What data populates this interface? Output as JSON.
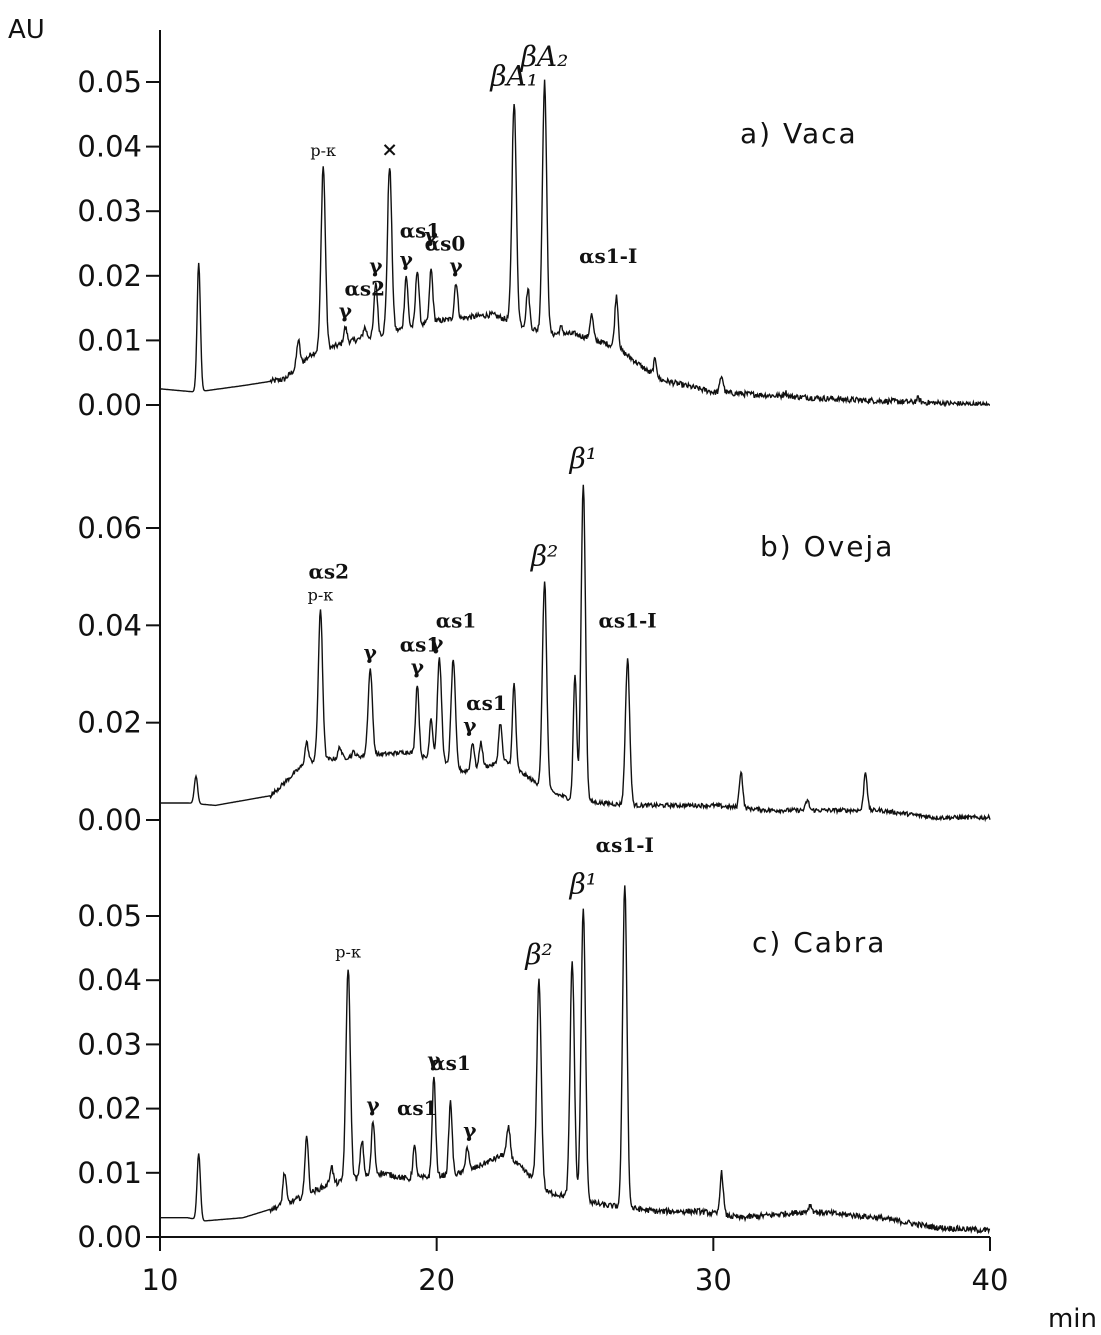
{
  "chart_data": {
    "type": "line",
    "xlabel": "min",
    "ylabel": "AU",
    "xlim": [
      10,
      40
    ],
    "x_ticks": [
      "10",
      "20",
      "30",
      "40"
    ],
    "grid": false,
    "panels": [
      {
        "label": "a)  Vaca",
        "ylim": [
          0,
          0.055
        ],
        "y_ticks": [
          "0.00",
          "0.01",
          "0.02",
          "0.03",
          "0.04",
          "0.05"
        ],
        "baseline": [
          [
            10,
            0.0025
          ],
          [
            11.3,
            0.002
          ],
          [
            13,
            0.003
          ],
          [
            14.5,
            0.004
          ],
          [
            15.5,
            0.008
          ],
          [
            17,
            0.01
          ],
          [
            20,
            0.013
          ],
          [
            22,
            0.014
          ],
          [
            24,
            0.011
          ],
          [
            25,
            0.011
          ],
          [
            26.5,
            0.009
          ],
          [
            28,
            0.004
          ],
          [
            30,
            0.002
          ],
          [
            32,
            0.0015
          ],
          [
            35,
            0.0008
          ],
          [
            40,
            0
          ]
        ],
        "peaks": [
          {
            "x": 11.4,
            "y": 0.022
          },
          {
            "x": 15.0,
            "y": 0.01
          },
          {
            "x": 15.9,
            "y": 0.037
          },
          {
            "x": 16.7,
            "y": 0.012
          },
          {
            "x": 17.4,
            "y": 0.012
          },
          {
            "x": 17.8,
            "y": 0.019
          },
          {
            "x": 18.3,
            "y": 0.037
          },
          {
            "x": 18.9,
            "y": 0.02
          },
          {
            "x": 19.3,
            "y": 0.021
          },
          {
            "x": 19.8,
            "y": 0.021
          },
          {
            "x": 20.7,
            "y": 0.019
          },
          {
            "x": 21.7,
            "y": 0.009
          },
          {
            "x": 22.8,
            "y": 0.047
          },
          {
            "x": 23.3,
            "y": 0.018
          },
          {
            "x": 23.9,
            "y": 0.05
          },
          {
            "x": 24.5,
            "y": 0.012
          },
          {
            "x": 25.0,
            "y": 0.01
          },
          {
            "x": 25.6,
            "y": 0.014
          },
          {
            "x": 26.5,
            "y": 0.017
          },
          {
            "x": 27.9,
            "y": 0.007
          },
          {
            "x": 30.3,
            "y": 0.0045
          },
          {
            "x": 32.6,
            "y": 0.002
          },
          {
            "x": 37.4,
            "y": 0.001
          }
        ],
        "annotations": [
          {
            "text": "p-κ",
            "x": 15.9
          },
          {
            "text": "×",
            "x": 18.3
          },
          {
            "text": "βA₁",
            "x": 22.8
          },
          {
            "text": "βA₂",
            "x": 23.9
          },
          {
            "text": "αs1",
            "x": 19.4
          },
          {
            "text": "αs0",
            "x": 20.3
          },
          {
            "text": "αs2",
            "x": 17.4
          },
          {
            "text": "γ",
            "x": 16.7
          },
          {
            "text": "γ",
            "x": 17.8
          },
          {
            "text": "γ",
            "x": 18.9
          },
          {
            "text": "γ",
            "x": 19.8
          },
          {
            "text": "γ",
            "x": 20.7
          },
          {
            "text": "αs1-I",
            "x": 26.2
          }
        ]
      },
      {
        "label": "b)  Oveja",
        "ylim": [
          0,
          0.077
        ],
        "y_ticks": [
          "0.00",
          "0.02",
          "0.04",
          "0.06"
        ],
        "baseline": [
          [
            10,
            0.0035
          ],
          [
            11,
            0.0035
          ],
          [
            12,
            0.003
          ],
          [
            14,
            0.005
          ],
          [
            15.3,
            0.012
          ],
          [
            17,
            0.013
          ],
          [
            19,
            0.014
          ],
          [
            21,
            0.01
          ],
          [
            22.5,
            0.012
          ],
          [
            24,
            0.006
          ],
          [
            25,
            0.004
          ],
          [
            27,
            0.003
          ],
          [
            28,
            0.003
          ],
          [
            30,
            0.003
          ],
          [
            32,
            0.002
          ],
          [
            34,
            0.002
          ],
          [
            36,
            0.002
          ],
          [
            38,
            0.0005
          ],
          [
            40,
            0.0005
          ]
        ],
        "peaks": [
          {
            "x": 11.3,
            "y": 0.009
          },
          {
            "x": 15.3,
            "y": 0.016
          },
          {
            "x": 15.8,
            "y": 0.043
          },
          {
            "x": 16.5,
            "y": 0.015
          },
          {
            "x": 17.0,
            "y": 0.014
          },
          {
            "x": 17.6,
            "y": 0.031
          },
          {
            "x": 18.0,
            "y": 0.013
          },
          {
            "x": 19.3,
            "y": 0.028
          },
          {
            "x": 19.8,
            "y": 0.021
          },
          {
            "x": 20.1,
            "y": 0.033
          },
          {
            "x": 20.6,
            "y": 0.033
          },
          {
            "x": 21.3,
            "y": 0.016
          },
          {
            "x": 21.6,
            "y": 0.016
          },
          {
            "x": 22.3,
            "y": 0.02
          },
          {
            "x": 22.8,
            "y": 0.028
          },
          {
            "x": 23.9,
            "y": 0.049
          },
          {
            "x": 25.0,
            "y": 0.03
          },
          {
            "x": 25.3,
            "y": 0.069
          },
          {
            "x": 26.9,
            "y": 0.033
          },
          {
            "x": 31.0,
            "y": 0.01
          },
          {
            "x": 33.4,
            "y": 0.004
          },
          {
            "x": 35.5,
            "y": 0.01
          }
        ],
        "annotations": [
          {
            "text": "p-κ",
            "x": 15.8
          },
          {
            "text": "β²",
            "x": 23.9
          },
          {
            "text": "β¹",
            "x": 25.3
          },
          {
            "text": "αs1-I",
            "x": 26.9
          },
          {
            "text": "αs2",
            "x": 16.1
          },
          {
            "text": "γ",
            "x": 17.6
          },
          {
            "text": "αs1",
            "x": 19.4
          },
          {
            "text": "γ",
            "x": 19.3
          },
          {
            "text": "γ",
            "x": 20.0
          },
          {
            "text": "αs1",
            "x": 20.7
          },
          {
            "text": "αs1",
            "x": 21.8
          },
          {
            "text": "γ",
            "x": 21.2
          }
        ]
      },
      {
        "label": "c)  Cabra",
        "ylim": [
          0,
          0.058
        ],
        "y_ticks": [
          "0.00",
          "0.01",
          "0.02",
          "0.03",
          "0.04",
          "0.05"
        ],
        "baseline": [
          [
            10,
            0.003
          ],
          [
            11,
            0.003
          ],
          [
            11.6,
            0.0025
          ],
          [
            13,
            0.003
          ],
          [
            14.5,
            0.005
          ],
          [
            16,
            0.008
          ],
          [
            18,
            0.01
          ],
          [
            19,
            0.009
          ],
          [
            21,
            0.01
          ],
          [
            22.5,
            0.013
          ],
          [
            24,
            0.007
          ],
          [
            26,
            0.005
          ],
          [
            28,
            0.004
          ],
          [
            29.5,
            0.004
          ],
          [
            31,
            0.003
          ],
          [
            33.5,
            0.004
          ],
          [
            36,
            0.003
          ],
          [
            38,
            0.0015
          ],
          [
            40,
            0.001
          ]
        ],
        "peaks": [
          {
            "x": 11.4,
            "y": 0.013
          },
          {
            "x": 14.5,
            "y": 0.01
          },
          {
            "x": 15.3,
            "y": 0.016
          },
          {
            "x": 16.2,
            "y": 0.011
          },
          {
            "x": 16.8,
            "y": 0.042
          },
          {
            "x": 17.3,
            "y": 0.015
          },
          {
            "x": 17.7,
            "y": 0.018
          },
          {
            "x": 19.2,
            "y": 0.014
          },
          {
            "x": 19.9,
            "y": 0.025
          },
          {
            "x": 20.5,
            "y": 0.021
          },
          {
            "x": 21.1,
            "y": 0.014
          },
          {
            "x": 22.6,
            "y": 0.017
          },
          {
            "x": 23.7,
            "y": 0.04
          },
          {
            "x": 24.9,
            "y": 0.043
          },
          {
            "x": 25.3,
            "y": 0.051
          },
          {
            "x": 26.8,
            "y": 0.055
          },
          {
            "x": 30.3,
            "y": 0.01
          },
          {
            "x": 33.5,
            "y": 0.005
          }
        ],
        "annotations": [
          {
            "text": "p-κ",
            "x": 16.8
          },
          {
            "text": "γ",
            "x": 17.7
          },
          {
            "text": "αs1",
            "x": 19.3
          },
          {
            "text": "γ",
            "x": 19.9
          },
          {
            "text": "αs1",
            "x": 20.5
          },
          {
            "text": "γ",
            "x": 21.2
          },
          {
            "text": "β²",
            "x": 23.7
          },
          {
            "text": "β¹",
            "x": 25.3
          },
          {
            "text": "αs1-I",
            "x": 26.8
          }
        ]
      }
    ]
  }
}
